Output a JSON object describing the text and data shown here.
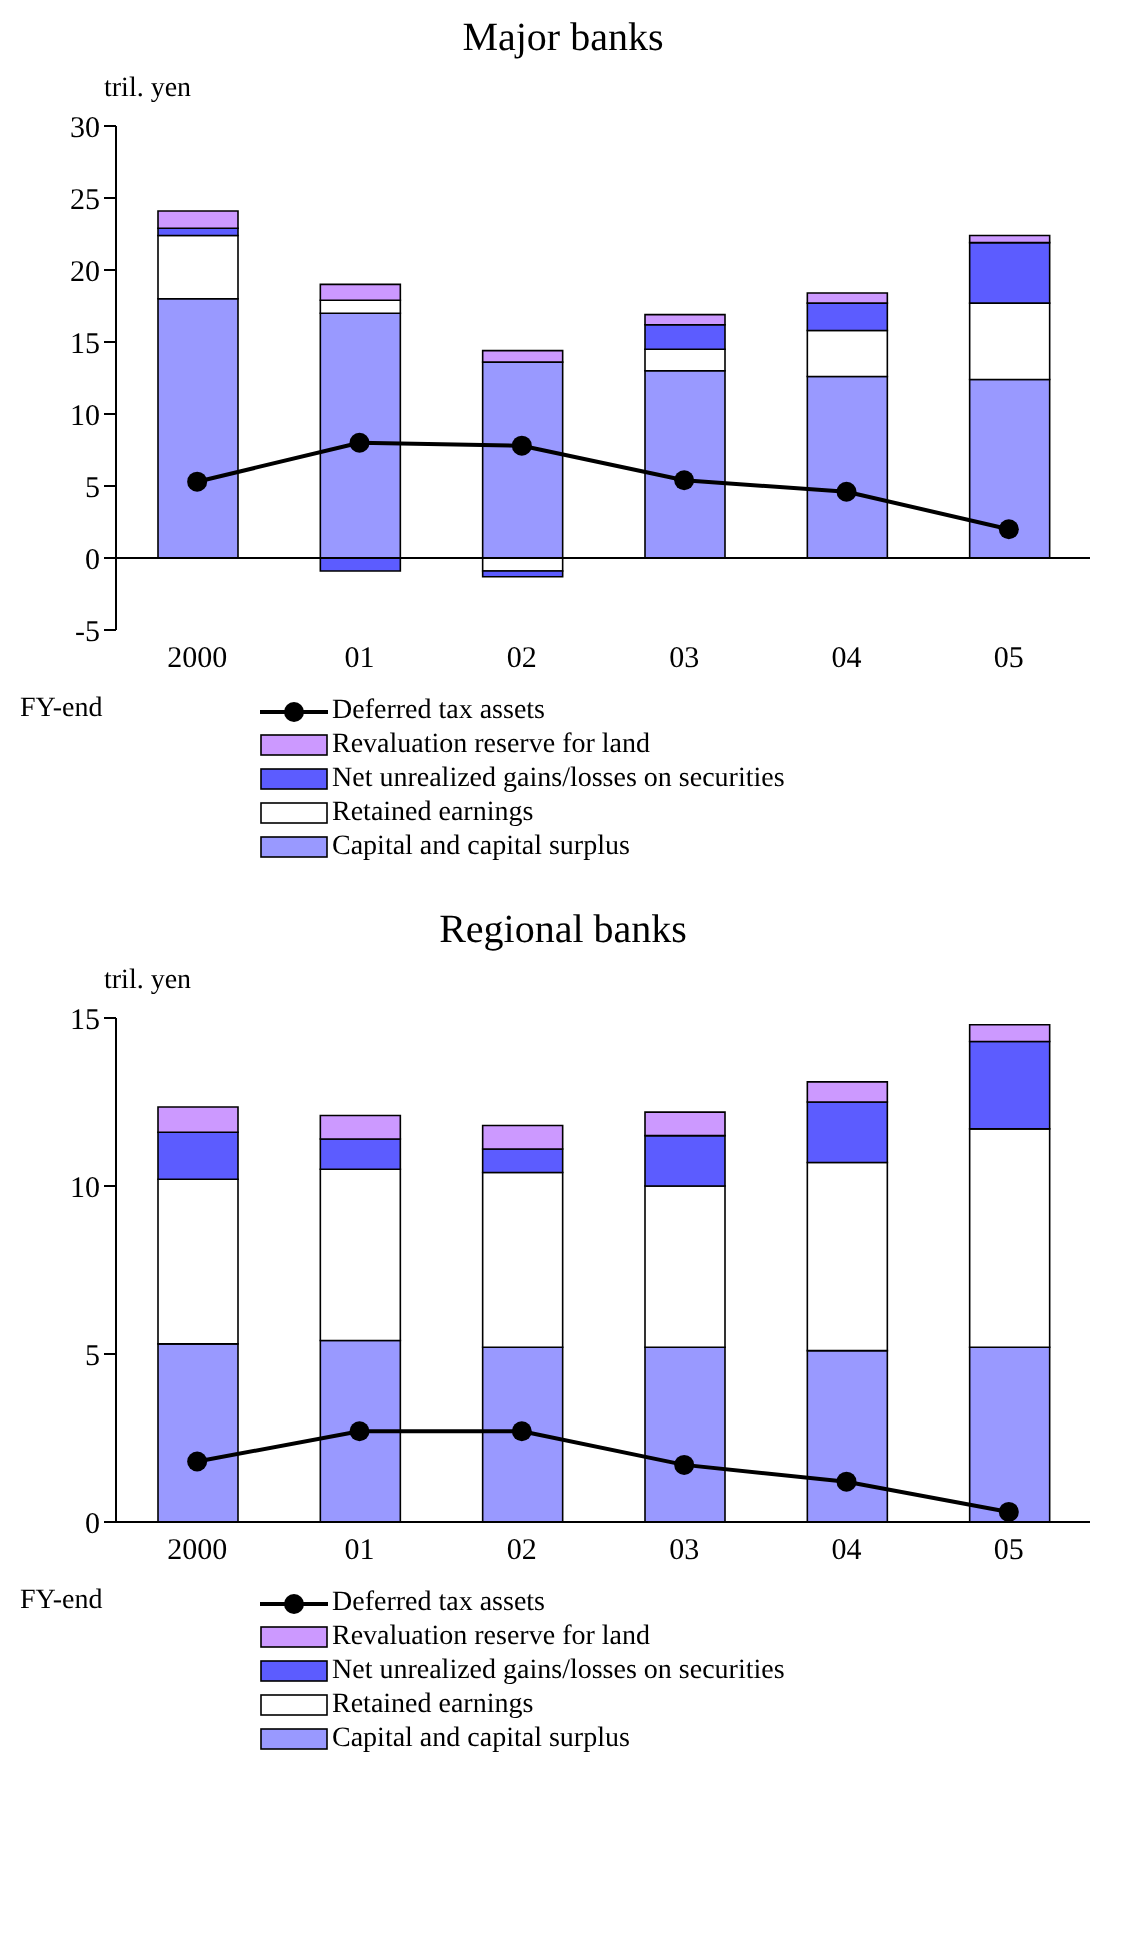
{
  "chart_data": [
    {
      "type": "bar",
      "title": "Major banks",
      "ylabel": "tril. yen",
      "xlabel": "FY-end",
      "categories": [
        "2000",
        "01",
        "02",
        "03",
        "04",
        "05"
      ],
      "stacked": true,
      "ylim": [
        -5,
        30
      ],
      "yticks": [
        -5,
        0,
        5,
        10,
        15,
        20,
        25,
        30
      ],
      "legend": "bottom",
      "series": [
        {
          "name": "Capital and capital surplus",
          "color": "#9999ff",
          "values": [
            18,
            17,
            13.6,
            13,
            12.6,
            12.4
          ]
        },
        {
          "name": "Retained earnings",
          "color": "#ffffff",
          "values": [
            4.4,
            0.9,
            -0.9,
            1.5,
            3.2,
            5.3
          ]
        },
        {
          "name": "Net unrealized gains/losses on securities",
          "color": "#5c5cff",
          "values": [
            0.5,
            -0.9,
            -0.4,
            1.7,
            1.9,
            4.2
          ]
        },
        {
          "name": "Revaluation reserve for land",
          "color": "#cc99ff",
          "values": [
            1.2,
            1.1,
            0.8,
            0.7,
            0.7,
            0.5
          ]
        },
        {
          "name": "Deferred tax assets",
          "type": "line",
          "color": "#000000",
          "marker": "circle",
          "values": [
            5.3,
            8.0,
            7.8,
            5.4,
            4.6,
            2.0
          ]
        }
      ]
    },
    {
      "type": "bar",
      "title": "Regional banks",
      "ylabel": "tril. yen",
      "xlabel": "FY-end",
      "categories": [
        "2000",
        "01",
        "02",
        "03",
        "04",
        "05"
      ],
      "stacked": true,
      "ylim": [
        0,
        15
      ],
      "yticks": [
        0,
        5,
        10,
        15
      ],
      "legend": "bottom",
      "series": [
        {
          "name": "Capital and capital surplus",
          "color": "#9999ff",
          "values": [
            5.3,
            5.4,
            5.2,
            5.2,
            5.1,
            5.2
          ]
        },
        {
          "name": "Retained earnings",
          "color": "#ffffff",
          "values": [
            4.9,
            5.1,
            5.2,
            4.8,
            5.6,
            6.5
          ]
        },
        {
          "name": "Net unrealized gains/losses on securities",
          "color": "#5c5cff",
          "values": [
            1.4,
            0.9,
            0.7,
            1.5,
            1.8,
            2.6
          ]
        },
        {
          "name": "Revaluation reserve for land",
          "color": "#cc99ff",
          "values": [
            0.75,
            0.7,
            0.7,
            0.7,
            0.6,
            0.5
          ]
        },
        {
          "name": "Deferred tax assets",
          "type": "line",
          "color": "#000000",
          "marker": "circle",
          "values": [
            1.8,
            2.7,
            2.7,
            1.7,
            1.2,
            0.3
          ]
        }
      ]
    }
  ]
}
